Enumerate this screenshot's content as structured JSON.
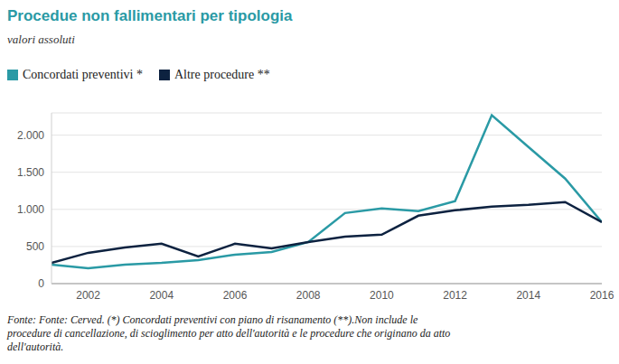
{
  "chart_data": {
    "type": "line",
    "title": "Procedue non fallimentari per tipologia",
    "subtitle": "valori assoluti",
    "x": [
      2001,
      2002,
      2003,
      2004,
      2005,
      2006,
      2007,
      2008,
      2009,
      2010,
      2011,
      2012,
      2013,
      2014,
      2015,
      2016
    ],
    "series": [
      {
        "name": "Concordati preventivi *",
        "color": "#2a9aa5",
        "values": [
          256,
          207,
          256,
          280,
          317,
          390,
          427,
          561,
          951,
          1012,
          976,
          1110,
          2268,
          1841,
          1415,
          829
        ]
      },
      {
        "name": "Altre procedure **",
        "color": "#0d2240",
        "values": [
          280,
          415,
          488,
          537,
          366,
          537,
          476,
          561,
          634,
          659,
          915,
          988,
          1037,
          1061,
          1098,
          829
        ]
      }
    ],
    "xlim": [
      2001,
      2016
    ],
    "xticks": [
      2002,
      2004,
      2006,
      2008,
      2010,
      2012,
      2014,
      2016
    ],
    "ylim": [
      0,
      2300
    ],
    "yticks": [
      0,
      500,
      {
        "value": 1000,
        "label": "1.000"
      },
      {
        "value": 1500,
        "label": "1.500"
      },
      {
        "value": 2000,
        "label": "2.000"
      }
    ],
    "grid": true,
    "legend": "top",
    "annotations": [
      "Fonte: Fonte: Cerved. (*) Concordati preventivi con piano di risanamento (**).Non include le procedure di cancellazione, di scioglimento per atto dell'autorità e le procedure che originano da atto dell'autorità."
    ]
  }
}
